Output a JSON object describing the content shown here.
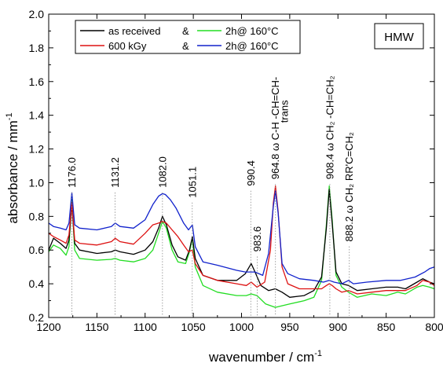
{
  "chart_data": {
    "type": "line",
    "title": "",
    "xlabel": "wavenumber / cm",
    "xlabel_sup": "-1",
    "ylabel": "absorbance / mm",
    "ylabel_sup": "-1",
    "xlim": [
      1200,
      800
    ],
    "ylim": [
      0.2,
      2.0
    ],
    "x_reversed": true,
    "x_ticks": [
      1200,
      1150,
      1100,
      1050,
      1000,
      950,
      900,
      850,
      800
    ],
    "x_tick_labels": [
      "1200",
      "1150",
      "1100",
      "1050",
      "1000",
      "950",
      "900",
      "850",
      "800"
    ],
    "y_ticks": [
      0.2,
      0.4,
      0.6,
      0.8,
      1.0,
      1.2,
      1.4,
      1.6,
      1.8,
      2.0
    ],
    "y_tick_labels": [
      "0.2",
      "0.4",
      "0.6",
      "0.8",
      "1.0",
      "1.2",
      "1.4",
      "1.6",
      "1.8",
      "2.0"
    ],
    "grid": false,
    "box_label": "HMW",
    "legend": {
      "placement": "top-left",
      "entries": [
        {
          "label": "as received",
          "connector": "&",
          "color": "#000000"
        },
        {
          "label": "2h@ 160°C",
          "color": "#22dd22"
        },
        {
          "label": "600 kGy",
          "connector": "&",
          "color": "#dd1111"
        },
        {
          "label": "2h@ 160°C",
          "color": "#1122cc"
        }
      ]
    },
    "peak_labels": [
      {
        "x": 1176.0,
        "y": 0.97,
        "text": "1176.0"
      },
      {
        "x": 1131.2,
        "y": 0.97,
        "text": "1131.2"
      },
      {
        "x": 1082.0,
        "y": 0.97,
        "text": "1082.0"
      },
      {
        "x": 1051.1,
        "y": 0.91,
        "text": "1051.1"
      },
      {
        "x": 990.4,
        "y": 0.98,
        "text": "990.4"
      },
      {
        "x": 983.6,
        "y": 0.59,
        "text": "983.6"
      },
      {
        "x": 964.8,
        "y": 1.02,
        "text": "964.8 ω C-H  -CH=CH-"
      },
      {
        "x": 908.4,
        "y": 1.02,
        "text": "908.4 ω CH₂  -CH=CH₂"
      },
      {
        "x": 888.2,
        "y": 0.65,
        "text": "888.2 ω CH₂  RR'C=CH₂"
      }
    ],
    "annotations": [
      {
        "x": 952,
        "y": 1.49,
        "text": "trans"
      }
    ],
    "series": [
      {
        "name": "as received & 2h@ 160°C",
        "color": "#22dd22",
        "points": [
          [
            1200,
            0.59
          ],
          [
            1195,
            0.63
          ],
          [
            1188,
            0.61
          ],
          [
            1182,
            0.57
          ],
          [
            1179,
            0.62
          ],
          [
            1176,
            0.9
          ],
          [
            1173,
            0.6
          ],
          [
            1168,
            0.55
          ],
          [
            1150,
            0.54
          ],
          [
            1135,
            0.545
          ],
          [
            1131,
            0.55
          ],
          [
            1126,
            0.54
          ],
          [
            1112,
            0.53
          ],
          [
            1100,
            0.55
          ],
          [
            1092,
            0.6
          ],
          [
            1086,
            0.7
          ],
          [
            1082,
            0.77
          ],
          [
            1078,
            0.73
          ],
          [
            1072,
            0.6
          ],
          [
            1066,
            0.53
          ],
          [
            1058,
            0.52
          ],
          [
            1054,
            0.59
          ],
          [
            1051,
            0.67
          ],
          [
            1048,
            0.5
          ],
          [
            1040,
            0.39
          ],
          [
            1025,
            0.35
          ],
          [
            1005,
            0.33
          ],
          [
            995,
            0.33
          ],
          [
            990,
            0.34
          ],
          [
            984,
            0.33
          ],
          [
            975,
            0.28
          ],
          [
            965,
            0.26
          ],
          [
            950,
            0.28
          ],
          [
            935,
            0.3
          ],
          [
            925,
            0.32
          ],
          [
            917,
            0.42
          ],
          [
            912,
            0.75
          ],
          [
            909,
            0.98
          ],
          [
            906,
            0.78
          ],
          [
            902,
            0.45
          ],
          [
            896,
            0.38
          ],
          [
            889,
            0.35
          ],
          [
            880,
            0.32
          ],
          [
            865,
            0.34
          ],
          [
            850,
            0.33
          ],
          [
            838,
            0.35
          ],
          [
            830,
            0.34
          ],
          [
            818,
            0.38
          ],
          [
            812,
            0.39
          ],
          [
            805,
            0.38
          ],
          [
            800,
            0.37
          ]
        ]
      },
      {
        "name": "as received",
        "color": "#000000",
        "points": [
          [
            1200,
            0.6
          ],
          [
            1195,
            0.67
          ],
          [
            1188,
            0.64
          ],
          [
            1182,
            0.61
          ],
          [
            1179,
            0.66
          ],
          [
            1176,
            0.87
          ],
          [
            1173,
            0.64
          ],
          [
            1168,
            0.6
          ],
          [
            1150,
            0.58
          ],
          [
            1135,
            0.59
          ],
          [
            1131,
            0.6
          ],
          [
            1126,
            0.59
          ],
          [
            1112,
            0.575
          ],
          [
            1100,
            0.6
          ],
          [
            1092,
            0.65
          ],
          [
            1086,
            0.73
          ],
          [
            1082,
            0.8
          ],
          [
            1078,
            0.75
          ],
          [
            1072,
            0.63
          ],
          [
            1066,
            0.56
          ],
          [
            1058,
            0.54
          ],
          [
            1054,
            0.6
          ],
          [
            1051,
            0.68
          ],
          [
            1048,
            0.55
          ],
          [
            1040,
            0.45
          ],
          [
            1025,
            0.42
          ],
          [
            1005,
            0.42
          ],
          [
            996,
            0.46
          ],
          [
            990,
            0.52
          ],
          [
            986,
            0.47
          ],
          [
            980,
            0.39
          ],
          [
            972,
            0.36
          ],
          [
            965,
            0.37
          ],
          [
            958,
            0.35
          ],
          [
            950,
            0.32
          ],
          [
            935,
            0.33
          ],
          [
            925,
            0.36
          ],
          [
            917,
            0.44
          ],
          [
            912,
            0.73
          ],
          [
            909,
            0.96
          ],
          [
            906,
            0.76
          ],
          [
            902,
            0.47
          ],
          [
            896,
            0.4
          ],
          [
            889,
            0.39
          ],
          [
            880,
            0.36
          ],
          [
            865,
            0.37
          ],
          [
            850,
            0.38
          ],
          [
            838,
            0.38
          ],
          [
            830,
            0.37
          ],
          [
            818,
            0.41
          ],
          [
            812,
            0.43
          ],
          [
            805,
            0.41
          ],
          [
            800,
            0.4
          ]
        ]
      },
      {
        "name": "600 kGy",
        "color": "#dd1111",
        "points": [
          [
            1200,
            0.7
          ],
          [
            1195,
            0.68
          ],
          [
            1188,
            0.66
          ],
          [
            1182,
            0.64
          ],
          [
            1179,
            0.69
          ],
          [
            1176,
            0.88
          ],
          [
            1173,
            0.66
          ],
          [
            1168,
            0.64
          ],
          [
            1150,
            0.63
          ],
          [
            1135,
            0.65
          ],
          [
            1131,
            0.67
          ],
          [
            1126,
            0.65
          ],
          [
            1112,
            0.635
          ],
          [
            1100,
            0.7
          ],
          [
            1092,
            0.75
          ],
          [
            1086,
            0.76
          ],
          [
            1082,
            0.77
          ],
          [
            1078,
            0.76
          ],
          [
            1072,
            0.72
          ],
          [
            1066,
            0.68
          ],
          [
            1060,
            0.63
          ],
          [
            1055,
            0.59
          ],
          [
            1051,
            0.6
          ],
          [
            1048,
            0.52
          ],
          [
            1040,
            0.45
          ],
          [
            1025,
            0.42
          ],
          [
            1005,
            0.4
          ],
          [
            995,
            0.39
          ],
          [
            990,
            0.41
          ],
          [
            984,
            0.38
          ],
          [
            976,
            0.41
          ],
          [
            970,
            0.6
          ],
          [
            967,
            0.88
          ],
          [
            964.8,
            0.98
          ],
          [
            962,
            0.83
          ],
          [
            958,
            0.5
          ],
          [
            952,
            0.4
          ],
          [
            940,
            0.37
          ],
          [
            925,
            0.37
          ],
          [
            917,
            0.37
          ],
          [
            912,
            0.39
          ],
          [
            909,
            0.4
          ],
          [
            906,
            0.39
          ],
          [
            902,
            0.37
          ],
          [
            896,
            0.35
          ],
          [
            889,
            0.36
          ],
          [
            880,
            0.34
          ],
          [
            865,
            0.35
          ],
          [
            850,
            0.36
          ],
          [
            838,
            0.36
          ],
          [
            830,
            0.36
          ],
          [
            818,
            0.39
          ],
          [
            812,
            0.42
          ],
          [
            805,
            0.41
          ],
          [
            800,
            0.39
          ]
        ]
      },
      {
        "name": "600 kGy & 2h@ 160°C",
        "color": "#1122cc",
        "points": [
          [
            1200,
            0.76
          ],
          [
            1195,
            0.74
          ],
          [
            1188,
            0.73
          ],
          [
            1182,
            0.72
          ],
          [
            1179,
            0.76
          ],
          [
            1176,
            0.94
          ],
          [
            1173,
            0.75
          ],
          [
            1168,
            0.73
          ],
          [
            1150,
            0.72
          ],
          [
            1135,
            0.74
          ],
          [
            1131,
            0.76
          ],
          [
            1126,
            0.74
          ],
          [
            1112,
            0.73
          ],
          [
            1100,
            0.78
          ],
          [
            1092,
            0.87
          ],
          [
            1086,
            0.92
          ],
          [
            1082,
            0.935
          ],
          [
            1079,
            0.93
          ],
          [
            1074,
            0.9
          ],
          [
            1068,
            0.85
          ],
          [
            1060,
            0.76
          ],
          [
            1055,
            0.72
          ],
          [
            1051,
            0.75
          ],
          [
            1048,
            0.62
          ],
          [
            1040,
            0.53
          ],
          [
            1025,
            0.51
          ],
          [
            1005,
            0.48
          ],
          [
            996,
            0.47
          ],
          [
            990,
            0.47
          ],
          [
            986,
            0.47
          ],
          [
            978,
            0.45
          ],
          [
            972,
            0.58
          ],
          [
            967,
            0.86
          ],
          [
            964.8,
            0.95
          ],
          [
            962,
            0.82
          ],
          [
            958,
            0.52
          ],
          [
            952,
            0.46
          ],
          [
            940,
            0.43
          ],
          [
            925,
            0.42
          ],
          [
            915,
            0.41
          ],
          [
            909,
            0.42
          ],
          [
            904,
            0.41
          ],
          [
            896,
            0.4
          ],
          [
            889,
            0.42
          ],
          [
            884,
            0.4
          ],
          [
            870,
            0.41
          ],
          [
            850,
            0.42
          ],
          [
            835,
            0.42
          ],
          [
            820,
            0.44
          ],
          [
            810,
            0.47
          ],
          [
            805,
            0.49
          ],
          [
            800,
            0.5
          ]
        ]
      }
    ]
  }
}
